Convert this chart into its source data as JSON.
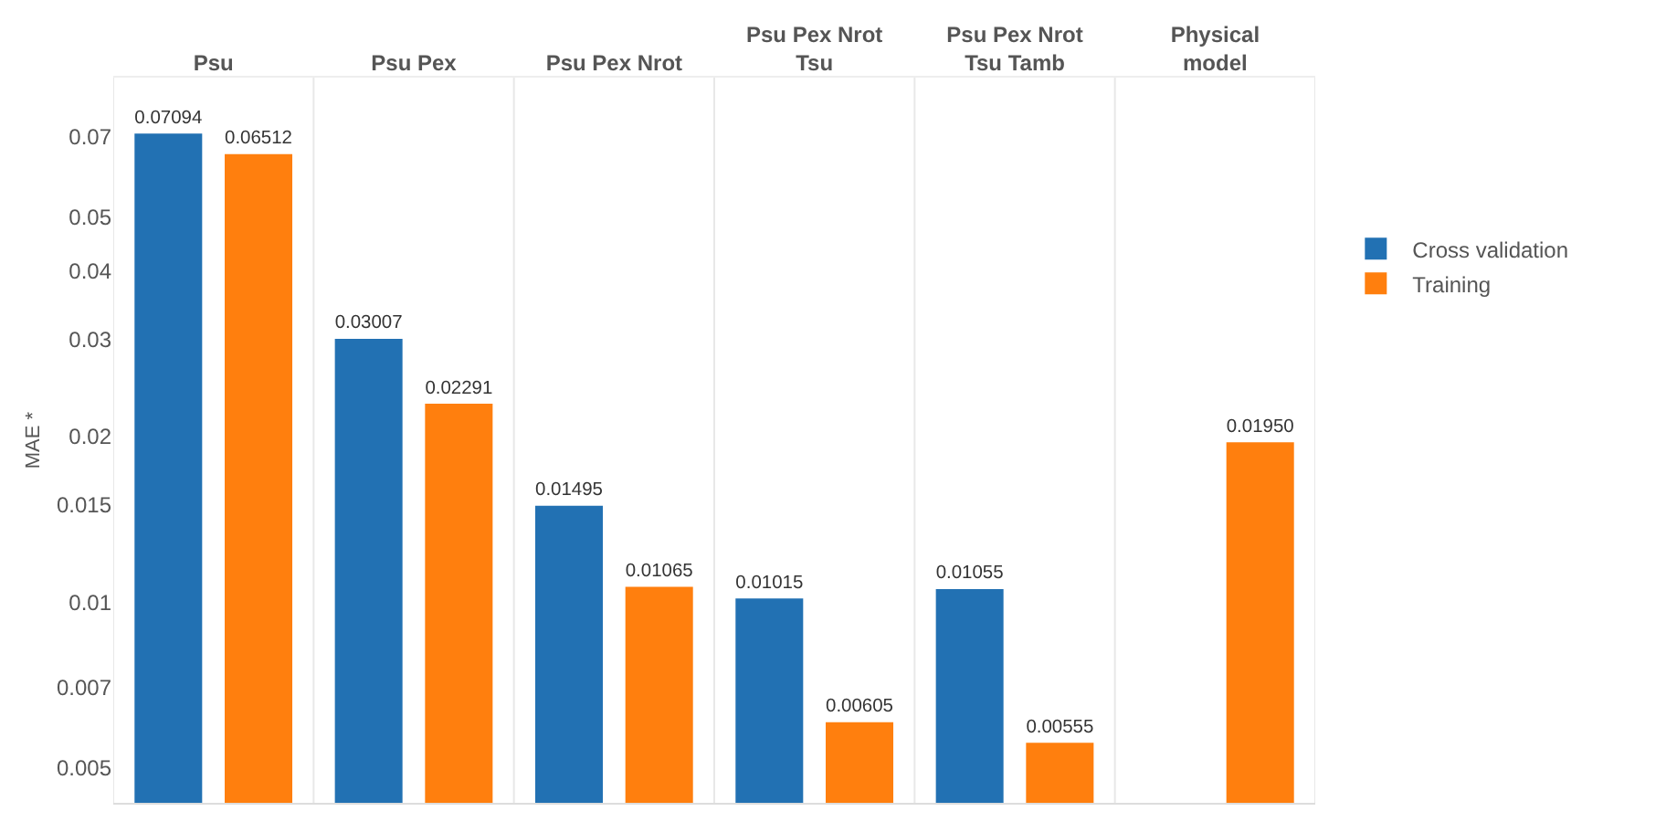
{
  "chart_data": {
    "type": "bar",
    "ylabel": "MAE *",
    "categories": [
      "Psu",
      "Psu Pex",
      "Psu Pex Nrot",
      "Psu Pex Nrot Tsu",
      "Psu Pex Nrot Tsu Tamb",
      "Physical model"
    ],
    "series": [
      {
        "name": "Cross validation",
        "color": "#2271b3",
        "values": [
          0.07094,
          0.03007,
          0.01495,
          0.01015,
          0.01055,
          null
        ],
        "value_labels": [
          "0.07094",
          "0.03007",
          "0.01495",
          "0.01015",
          "0.01055",
          null
        ]
      },
      {
        "name": "Training",
        "color": "#ff7f0e",
        "values": [
          0.06512,
          0.02291,
          0.01065,
          0.00605,
          0.00555,
          0.0195
        ],
        "value_labels": [
          "0.06512",
          "0.02291",
          "0.01065",
          "0.00605",
          "0.00555",
          "0.01950"
        ]
      }
    ],
    "log": true,
    "ylim": [
      0.0043,
      0.09
    ],
    "yticks": [
      0.005,
      0.007,
      0.01,
      0.015,
      0.02,
      0.03,
      0.04,
      0.05,
      0.07
    ],
    "grid": false,
    "legend": "right"
  }
}
